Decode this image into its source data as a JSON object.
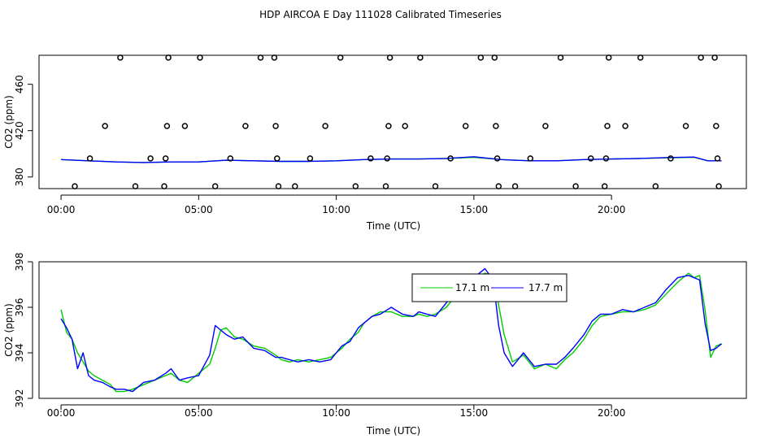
{
  "title": "HDP AIRCOA E  Day 111028  Calibrated Timeseries",
  "chart_data": [
    {
      "type": "scatter+line",
      "xlabel": "Time (UTC)",
      "ylabel": "CO2 (ppm)",
      "xlim": [
        -0.8,
        24.9
      ],
      "ylim": [
        370,
        485
      ],
      "xticks": [
        0,
        5,
        10,
        15,
        20
      ],
      "xtick_labels": [
        "00:00",
        "05:00",
        "10:00",
        "15:00",
        "20:00"
      ],
      "yticks": [
        380,
        420,
        460
      ],
      "ytick_labels": [
        "380",
        "420",
        "460"
      ],
      "points": [
        [
          0.5,
          372
        ],
        [
          1.05,
          396
        ],
        [
          1.6,
          424
        ],
        [
          2.15,
          483
        ],
        [
          2.7,
          372
        ],
        [
          3.25,
          396
        ],
        [
          3.75,
          372
        ],
        [
          3.8,
          396
        ],
        [
          3.85,
          424
        ],
        [
          3.9,
          483
        ],
        [
          4.5,
          424
        ],
        [
          5.05,
          483
        ],
        [
          5.6,
          372
        ],
        [
          6.15,
          396
        ],
        [
          6.7,
          424
        ],
        [
          7.25,
          483
        ],
        [
          7.75,
          483
        ],
        [
          7.8,
          424
        ],
        [
          7.85,
          396
        ],
        [
          7.9,
          372
        ],
        [
          8.5,
          372
        ],
        [
          9.05,
          396
        ],
        [
          9.6,
          424
        ],
        [
          10.15,
          483
        ],
        [
          10.7,
          372
        ],
        [
          11.25,
          396
        ],
        [
          11.8,
          372
        ],
        [
          11.85,
          396
        ],
        [
          11.9,
          424
        ],
        [
          11.95,
          483
        ],
        [
          12.5,
          424
        ],
        [
          13.05,
          483
        ],
        [
          13.6,
          372
        ],
        [
          14.15,
          396
        ],
        [
          14.7,
          424
        ],
        [
          15.25,
          483
        ],
        [
          15.75,
          483
        ],
        [
          15.8,
          424
        ],
        [
          15.85,
          396
        ],
        [
          15.9,
          372
        ],
        [
          16.5,
          372
        ],
        [
          17.05,
          396
        ],
        [
          17.6,
          424
        ],
        [
          18.15,
          483
        ],
        [
          18.7,
          372
        ],
        [
          19.25,
          396
        ],
        [
          19.75,
          372
        ],
        [
          19.8,
          396
        ],
        [
          19.85,
          424
        ],
        [
          19.9,
          483
        ],
        [
          20.5,
          424
        ],
        [
          21.05,
          483
        ],
        [
          21.6,
          372
        ],
        [
          22.15,
          396
        ],
        [
          22.7,
          424
        ],
        [
          23.25,
          483
        ],
        [
          23.75,
          483
        ],
        [
          23.8,
          424
        ],
        [
          23.85,
          396
        ],
        [
          23.9,
          372
        ]
      ],
      "series": [
        {
          "color": "#00cc00",
          "x": [
            0,
            1,
            2,
            3,
            4,
            5,
            6,
            7,
            8,
            9,
            10,
            11,
            12,
            13,
            14,
            15,
            16,
            17,
            18,
            19,
            20,
            21,
            22,
            23,
            23.5,
            24
          ],
          "y": [
            395,
            394,
            393,
            392.5,
            393,
            393,
            394.5,
            394,
            393.5,
            393.5,
            394,
            395,
            395.5,
            395.5,
            396,
            397,
            395,
            394,
            394,
            395,
            395.5,
            396,
            396.5,
            397,
            394,
            394
          ]
        },
        {
          "color": "#0000ff",
          "x": [
            0,
            1,
            2,
            3,
            4,
            5,
            6,
            7,
            8,
            9,
            10,
            11,
            12,
            13,
            14,
            15,
            16,
            17,
            18,
            19,
            20,
            21,
            22,
            23,
            23.5,
            24
          ],
          "y": [
            395,
            394,
            393,
            392.5,
            393,
            393,
            394.5,
            394,
            393.5,
            393.5,
            394,
            395,
            395.5,
            395.5,
            396,
            397.5,
            395,
            394,
            394,
            395,
            395.5,
            396,
            396.8,
            397.2,
            394,
            394
          ]
        }
      ]
    },
    {
      "type": "line",
      "xlabel": "Time (UTC)",
      "ylabel": "CO2 (ppm)",
      "xlim": [
        -0.8,
        24.9
      ],
      "ylim": [
        392,
        398
      ],
      "xticks": [
        0,
        5,
        10,
        15,
        20
      ],
      "xtick_labels": [
        "00:00",
        "05:00",
        "10:00",
        "15:00",
        "20:00"
      ],
      "yticks": [
        392,
        394,
        396,
        398
      ],
      "ytick_labels": [
        "392",
        "394",
        "396",
        "398"
      ],
      "legend_position": "top-center",
      "series": [
        {
          "name": "17.1 m",
          "color": "#00cc00",
          "x": [
            0,
            0.2,
            0.4,
            0.6,
            0.8,
            1.0,
            1.2,
            1.5,
            1.8,
            2.0,
            2.3,
            2.6,
            3.0,
            3.4,
            3.8,
            4.0,
            4.3,
            4.6,
            5.0,
            5.4,
            5.6,
            5.8,
            6.0,
            6.3,
            6.6,
            7.0,
            7.4,
            7.8,
            8.0,
            8.3,
            8.6,
            9.0,
            9.4,
            9.8,
            10.2,
            10.5,
            10.8,
            11.0,
            11.3,
            11.6,
            12.0,
            12.4,
            12.8,
            13.0,
            13.3,
            13.6,
            14.0,
            14.4,
            14.8,
            15.1,
            15.4,
            15.7,
            15.9,
            16.1,
            16.4,
            16.8,
            17.2,
            17.6,
            18.0,
            18.3,
            18.6,
            19.0,
            19.3,
            19.6,
            20.0,
            20.4,
            20.8,
            21.2,
            21.6,
            22.0,
            22.4,
            22.8,
            23.0,
            23.2,
            23.4,
            23.6,
            23.8,
            24.0
          ],
          "y": [
            395.9,
            394.9,
            394.6,
            394.0,
            393.6,
            393.2,
            393.0,
            392.8,
            392.6,
            392.3,
            392.3,
            392.4,
            392.6,
            392.8,
            393.0,
            393.1,
            392.8,
            392.7,
            393.1,
            393.5,
            394.2,
            395.0,
            395.1,
            394.7,
            394.6,
            394.3,
            394.2,
            393.9,
            393.7,
            393.6,
            393.7,
            393.6,
            393.7,
            393.8,
            394.2,
            394.6,
            394.9,
            395.3,
            395.6,
            395.8,
            395.8,
            395.6,
            395.6,
            395.7,
            395.6,
            395.7,
            396.0,
            396.6,
            397.0,
            397.3,
            397.5,
            397.4,
            396.1,
            394.8,
            393.6,
            393.9,
            393.3,
            393.5,
            393.3,
            393.7,
            394.0,
            394.6,
            395.2,
            395.6,
            395.7,
            395.8,
            395.8,
            395.9,
            396.1,
            396.6,
            397.1,
            397.5,
            397.3,
            397.4,
            395.9,
            393.8,
            394.3,
            394.4
          ]
        },
        {
          "name": "17.7 m",
          "color": "#0000ff",
          "x": [
            0,
            0.2,
            0.4,
            0.6,
            0.8,
            1.0,
            1.2,
            1.5,
            1.8,
            2.0,
            2.3,
            2.6,
            3.0,
            3.4,
            3.8,
            4.0,
            4.3,
            4.6,
            5.0,
            5.4,
            5.6,
            5.8,
            6.0,
            6.3,
            6.6,
            7.0,
            7.4,
            7.8,
            8.0,
            8.3,
            8.6,
            9.0,
            9.4,
            9.8,
            10.2,
            10.5,
            10.8,
            11.0,
            11.3,
            11.6,
            12.0,
            12.4,
            12.8,
            13.0,
            13.3,
            13.6,
            14.0,
            14.4,
            14.8,
            15.1,
            15.4,
            15.7,
            15.9,
            16.1,
            16.4,
            16.8,
            17.2,
            17.6,
            18.0,
            18.3,
            18.6,
            19.0,
            19.3,
            19.6,
            20.0,
            20.4,
            20.8,
            21.2,
            21.6,
            22.0,
            22.4,
            22.8,
            23.0,
            23.2,
            23.4,
            23.6,
            23.8,
            24.0
          ],
          "y": [
            395.5,
            395.1,
            394.6,
            393.3,
            394.0,
            393.0,
            392.8,
            392.7,
            392.5,
            392.4,
            392.4,
            392.3,
            392.7,
            392.8,
            393.1,
            393.3,
            392.8,
            392.9,
            393.0,
            393.9,
            395.2,
            395.0,
            394.8,
            394.6,
            394.7,
            394.2,
            394.1,
            393.8,
            393.8,
            393.7,
            393.6,
            393.7,
            393.6,
            393.7,
            394.3,
            394.5,
            395.1,
            395.3,
            395.6,
            395.7,
            396.0,
            395.7,
            395.6,
            395.8,
            395.7,
            395.6,
            396.2,
            396.7,
            397.1,
            397.4,
            397.7,
            397.2,
            395.2,
            394.0,
            393.4,
            394.0,
            393.4,
            393.5,
            393.5,
            393.8,
            394.2,
            394.8,
            395.4,
            395.7,
            395.7,
            395.9,
            395.8,
            396.0,
            396.2,
            396.8,
            397.3,
            397.4,
            397.3,
            397.2,
            395.3,
            394.1,
            394.2,
            394.4
          ]
        }
      ]
    }
  ]
}
